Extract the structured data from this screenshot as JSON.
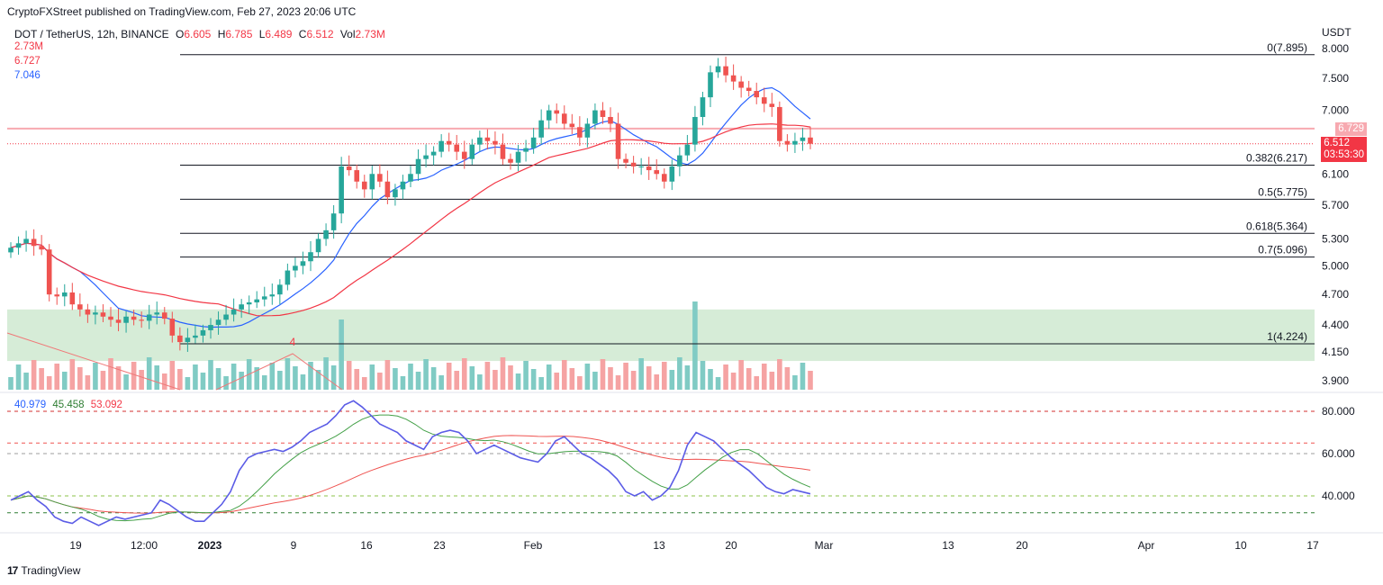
{
  "header": {
    "published": "CryptoFXStreet published on TradingView.com, Feb 27, 2023 20:06 UTC",
    "symbol": "DOT / TetherUS, 12h, BINANCE",
    "o_label": "O",
    "o": "6.605",
    "h_label": "H",
    "h": "6.785",
    "l_label": "L",
    "l": "6.489",
    "c_label": "C",
    "c": "6.512",
    "vol_label": "Vol",
    "vol": "2.73M"
  },
  "indicator_values": {
    "volume": "2.73M",
    "ma_red": "6.727",
    "ma_blue": "7.046"
  },
  "rsi_values": {
    "rsi": "40.979",
    "rsi_ma": "45.458",
    "long_ma": "53.092"
  },
  "colors": {
    "up": "#26a69a",
    "down": "#ef5350",
    "ma_blue": "#2962ff",
    "ma_red": "#f23645",
    "zone": "#c8e6c9",
    "rsi": "#5b5ce6"
  },
  "logo_text": "TradingView",
  "chart_data": {
    "type": "candlestick",
    "symbol": "DOT / TetherUS",
    "interval": "12h",
    "currency": "USDT",
    "y_axis_price": {
      "ticks": [
        "8.000",
        "7.500",
        "7.000",
        "6.100",
        "5.700",
        "5.300",
        "5.000",
        "4.700",
        "4.400",
        "4.150",
        "3.900"
      ],
      "ylim": [
        3.9,
        8.0
      ],
      "scale": "log"
    },
    "price_tags": {
      "level": "6.729",
      "last": "6.512",
      "countdown": "03:53:30"
    },
    "x_axis": [
      "19",
      "12:00",
      "2023",
      "9",
      "16",
      "23",
      "Feb",
      "13",
      "20",
      "Mar",
      "13",
      "20",
      "Apr",
      "10",
      "17"
    ],
    "fibonacci": [
      {
        "label": "0(7.895)",
        "value": 7.895
      },
      {
        "label": "0.382(6.217)",
        "value": 6.217
      },
      {
        "label": "0.5(5.775)",
        "value": 5.775
      },
      {
        "label": "0.618(5.364)",
        "value": 5.364
      },
      {
        "label": "0.7(5.096)",
        "value": 5.096
      },
      {
        "label": "1(4.224)",
        "value": 4.224
      }
    ],
    "support_zone": [
      4.07,
      4.55
    ],
    "resistance_line": 6.729,
    "last_price_line": 6.512,
    "annotation": "4",
    "closes": [
      5.2,
      5.25,
      5.3,
      5.22,
      5.18,
      4.7,
      4.68,
      4.72,
      4.6,
      4.55,
      4.5,
      4.52,
      4.48,
      4.45,
      4.42,
      4.48,
      4.45,
      4.44,
      4.5,
      4.52,
      4.46,
      4.3,
      4.24,
      4.28,
      4.3,
      4.35,
      4.4,
      4.45,
      4.5,
      4.55,
      4.6,
      4.62,
      4.65,
      4.68,
      4.7,
      4.8,
      4.95,
      5.0,
      5.05,
      5.15,
      5.3,
      5.4,
      5.6,
      6.2,
      6.15,
      6.0,
      5.9,
      6.1,
      6.0,
      5.8,
      5.9,
      6.0,
      6.1,
      6.3,
      6.35,
      6.4,
      6.55,
      6.5,
      6.4,
      6.3,
      6.5,
      6.6,
      6.55,
      6.5,
      6.3,
      6.25,
      6.4,
      6.45,
      6.6,
      6.85,
      7.0,
      6.95,
      6.8,
      6.75,
      6.6,
      6.8,
      7.0,
      6.9,
      6.8,
      6.3,
      6.25,
      6.2,
      6.2,
      6.15,
      6.1,
      6.0,
      6.2,
      6.35,
      6.5,
      6.9,
      7.2,
      7.6,
      7.7,
      7.55,
      7.45,
      7.35,
      7.3,
      7.2,
      7.1,
      7.05,
      6.55,
      6.5,
      6.55,
      6.6,
      6.512
    ],
    "volume_note": "volume histogram bars, relative units",
    "y_axis_rsi": {
      "ticks": [
        "80.000",
        "60.000",
        "40.000"
      ],
      "levels": [
        80,
        65,
        60,
        40,
        32
      ]
    },
    "rsi_series": [
      38,
      40,
      42,
      38,
      35,
      30,
      28,
      27,
      30,
      28,
      26,
      28,
      30,
      29,
      30,
      31,
      32,
      38,
      36,
      33,
      30,
      28,
      28,
      32,
      36,
      42,
      52,
      58,
      60,
      61,
      62,
      61,
      63,
      66,
      70,
      72,
      74,
      78,
      83,
      85,
      82,
      78,
      74,
      72,
      70,
      66,
      64,
      62,
      68,
      70,
      71,
      70,
      66,
      60,
      62,
      64,
      62,
      60,
      58,
      57,
      56,
      60,
      66,
      68,
      64,
      60,
      58,
      55,
      52,
      48,
      42,
      40,
      42,
      38,
      40,
      44,
      52,
      64,
      70,
      68,
      66,
      62,
      58,
      55,
      52,
      48,
      44,
      42,
      41,
      43,
      42,
      40.979
    ]
  }
}
